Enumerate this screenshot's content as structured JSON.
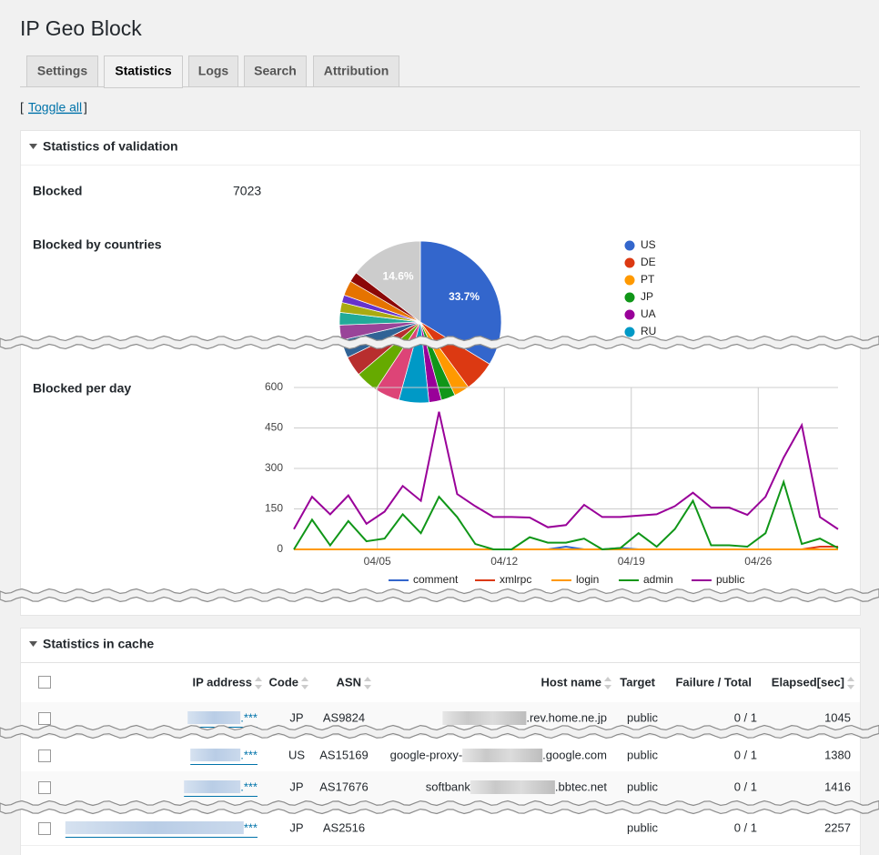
{
  "header": {
    "title": "IP Geo Block"
  },
  "tabs": [
    "Settings",
    "Statistics",
    "Logs",
    "Search",
    "Attribution"
  ],
  "toggle": {
    "open": "[",
    "link": "Toggle all",
    "close": "]"
  },
  "validation": {
    "title": "Statistics of validation",
    "blocked_label": "Blocked",
    "blocked_value": 7023,
    "countries_label": "Blocked by countries",
    "per_day_label": "Blocked per day",
    "pie": {
      "type": "pie",
      "categories": [
        "US",
        "DE",
        "PT",
        "JP",
        "UA",
        "RU",
        null,
        null,
        null,
        null,
        null,
        null,
        null,
        null,
        null,
        null,
        null
      ],
      "values": [
        33.7,
        6.2,
        3.1,
        2.8,
        2.5,
        6.0,
        5.0,
        4.5,
        4.0,
        3.6,
        3.0,
        2.5,
        2.0,
        1.5,
        3.0,
        2.0,
        14.6
      ],
      "value_labels": [
        "33.7%",
        null,
        null,
        null,
        null,
        null,
        null,
        null,
        null,
        null,
        null,
        null,
        null,
        null,
        null,
        null,
        "14.6%"
      ],
      "colors": [
        "#3366cc",
        "#dc3912",
        "#ff9900",
        "#109618",
        "#990099",
        "#0099c6",
        "#dd4477",
        "#66aa00",
        "#b82e2e",
        "#316395",
        "#994499",
        "#22aa99",
        "#aaaa11",
        "#6633cc",
        "#e67300",
        "#8b0707",
        "#cccccc"
      ],
      "legend": "right"
    },
    "line": {
      "type": "line",
      "x": [
        0,
        1,
        2,
        3,
        4,
        5,
        6,
        7,
        8,
        9,
        10,
        11,
        12,
        13,
        14,
        15,
        16,
        17,
        18,
        19,
        20,
        21,
        22,
        23,
        24,
        25,
        26,
        27,
        28,
        29,
        30
      ],
      "xlim": [
        0,
        30
      ],
      "xticks": [
        {
          "value": 4.6,
          "label": "04/05"
        },
        {
          "value": 11.6,
          "label": "04/12"
        },
        {
          "value": 18.6,
          "label": "04/19"
        },
        {
          "value": 25.6,
          "label": "04/26"
        }
      ],
      "ylim": [
        0,
        600
      ],
      "yticks": [
        0,
        150,
        300,
        450,
        600
      ],
      "grid": true,
      "legend": "bottom",
      "series": [
        {
          "name": "comment",
          "color": "#3366cc",
          "values": [
            0,
            0,
            0,
            0,
            0,
            0,
            0,
            0,
            0,
            0,
            0,
            0,
            0,
            0,
            0,
            10,
            0,
            0,
            5,
            0,
            0,
            0,
            0,
            0,
            0,
            0,
            0,
            0,
            0,
            0,
            0
          ]
        },
        {
          "name": "xmlrpc",
          "color": "#dc3912",
          "values": [
            0,
            0,
            0,
            0,
            0,
            0,
            0,
            0,
            0,
            0,
            0,
            0,
            0,
            0,
            0,
            0,
            0,
            0,
            0,
            0,
            0,
            0,
            0,
            0,
            0,
            0,
            0,
            0,
            0,
            10,
            10
          ]
        },
        {
          "name": "login",
          "color": "#ff9900",
          "values": [
            0,
            0,
            0,
            0,
            0,
            0,
            0,
            0,
            0,
            0,
            0,
            0,
            0,
            0,
            0,
            0,
            0,
            0,
            0,
            0,
            0,
            0,
            0,
            0,
            0,
            0,
            0,
            0,
            0,
            0,
            0
          ]
        },
        {
          "name": "admin",
          "color": "#109618",
          "values": [
            0,
            110,
            15,
            105,
            30,
            40,
            130,
            60,
            195,
            120,
            20,
            0,
            0,
            45,
            25,
            25,
            40,
            0,
            5,
            60,
            10,
            75,
            180,
            15,
            15,
            10,
            60,
            250,
            20,
            40,
            5
          ]
        },
        {
          "name": "public",
          "color": "#990099",
          "values": [
            75,
            195,
            130,
            200,
            95,
            140,
            235,
            180,
            510,
            205,
            160,
            120,
            120,
            118,
            82,
            90,
            165,
            120,
            120,
            125,
            130,
            160,
            210,
            155,
            155,
            128,
            195,
            340,
            460,
            120,
            75
          ]
        }
      ]
    }
  },
  "cache": {
    "title": "Statistics in cache",
    "columns": [
      "IP address",
      "Code",
      "ASN",
      "Host name",
      "Target",
      "Failure / Total",
      "Elapsed[sec]"
    ],
    "rows": [
      {
        "ip": ".***",
        "code": "JP",
        "asn": "AS9824",
        "host_suffix": ".rev.home.ne.jp",
        "target": "public",
        "ratio": "0 / 1",
        "elapsed": 1045
      },
      {
        "ip": ".***",
        "code": "US",
        "asn": "AS15169",
        "host_prefix": "google-proxy-",
        "host_suffix": ".google.com",
        "target": "public",
        "ratio": "0 / 1",
        "elapsed": 1380
      },
      {
        "ip": ".***",
        "code": "JP",
        "asn": "AS17676",
        "host_prefix": "softbank",
        "host_suffix": ".bbtec.net",
        "target": "public",
        "ratio": "0 / 1",
        "elapsed": 1416
      },
      {
        "ip": "***",
        "code": "JP",
        "asn": "AS2516",
        "target": "public",
        "ratio": "0 / 1",
        "elapsed": 2257
      }
    ]
  }
}
